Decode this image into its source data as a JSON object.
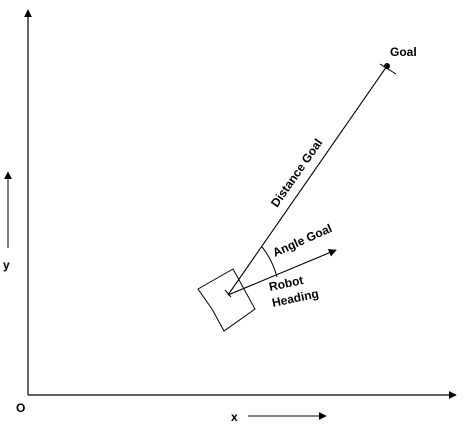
{
  "labels": {
    "goal": "Goal",
    "distance_goal": "Distance Goal",
    "angle_goal": "Angle Goal",
    "robot_line1": "Robot",
    "robot_line2": "Heading",
    "y_axis": "y",
    "x_axis": "x",
    "origin": "O"
  },
  "colors": {
    "stroke": "#000000",
    "background": "#ffffff"
  }
}
